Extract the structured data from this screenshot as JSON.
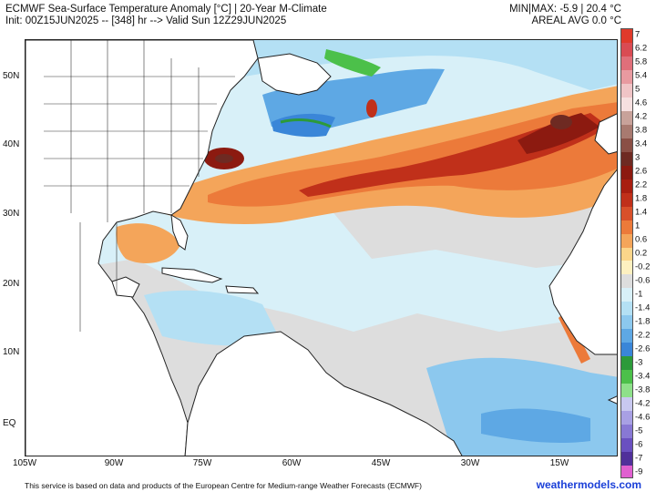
{
  "header": {
    "title_line1": "ECMWF Sea-Surface Temperature Anomaly [°C] | 20-Year M-Climate",
    "title_line2": "Init: 00Z15JUN2025 -- [348] hr --> Valid Sun 12Z29JUN2025",
    "minmax": "MIN|MAX: -5.9 | 20.4 °C",
    "areal_avg": "AREAL AVG 0.0 °C"
  },
  "axes": {
    "lat_labels": [
      "50N",
      "40N",
      "30N",
      "20N",
      "10N",
      "EQ"
    ],
    "lon_labels": [
      "105W",
      "90W",
      "75W",
      "60W",
      "45W",
      "30W",
      "15W"
    ]
  },
  "colorbar": {
    "labels": [
      "7",
      "6.2",
      "5.8",
      "5.4",
      "5",
      "4.6",
      "4.2",
      "3.8",
      "3.4",
      "3",
      "2.6",
      "2.2",
      "1.8",
      "1.4",
      "1",
      "0.6",
      "0.2",
      "-0.2",
      "-0.6",
      "-1",
      "-1.4",
      "-1.8",
      "-2.2",
      "-2.6",
      "-3",
      "-3.4",
      "-3.8",
      "-4.2",
      "-4.6",
      "-5",
      "-6",
      "-7",
      "-9"
    ],
    "colors": [
      "#e03a2b",
      "#d94b53",
      "#e06f7a",
      "#e89aa0",
      "#f0c4c6",
      "#f6e0e0",
      "#c8a29a",
      "#a87a70",
      "#8a4f45",
      "#6e2a22",
      "#8c1a10",
      "#a81e10",
      "#c0301a",
      "#d8502a",
      "#ec7a3a",
      "#f4a55a",
      "#fbd58a",
      "#fdf0c0",
      "#dddddd",
      "#d8f0f8",
      "#b4e0f4",
      "#8cc8ee",
      "#5ea8e4",
      "#3a86d8",
      "#2c9a3a",
      "#4cc04a",
      "#8ee08a",
      "#c8c8f0",
      "#a8a0e4",
      "#8878d4",
      "#6a50c0",
      "#50309a",
      "#e060d0"
    ]
  },
  "footer": {
    "disclaimer": "This service is based on data and products of the European Centre for Medium-range Weather Forecasts (ECMWF)",
    "brand": "weathermodels.com"
  }
}
